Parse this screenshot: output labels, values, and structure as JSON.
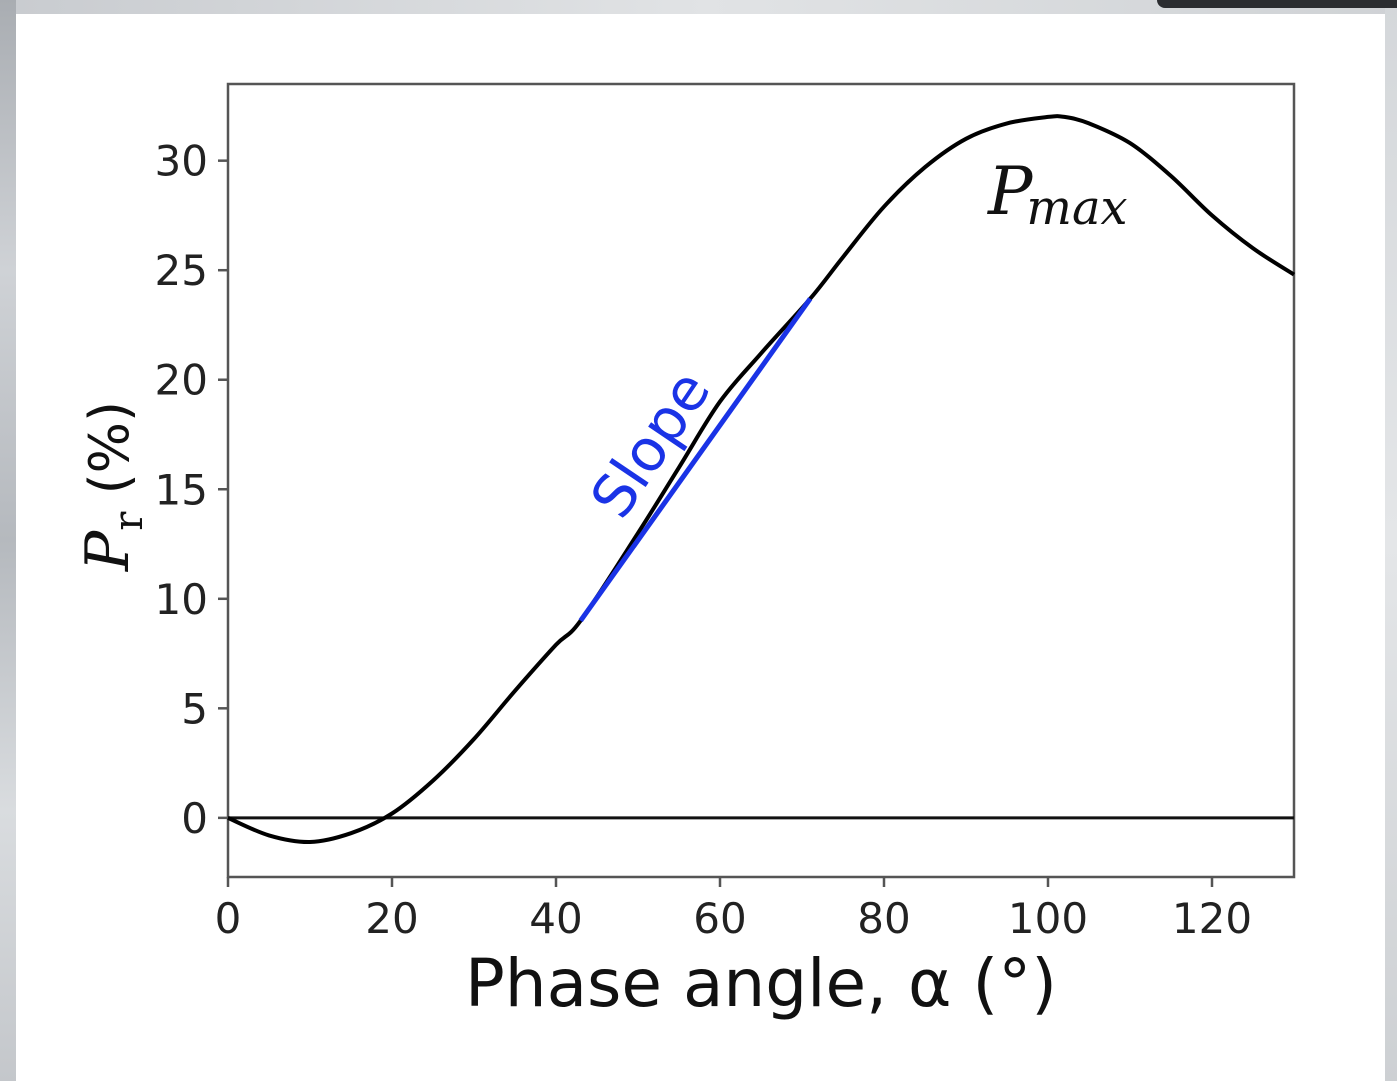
{
  "chart_data": {
    "type": "line",
    "xlabel": "Phase angle, α (°)",
    "ylabel": {
      "symbol": "P",
      "subscript": "r",
      "unit": " (%)"
    },
    "xlim": [
      0,
      130
    ],
    "ylim": [
      -2.7,
      33.5
    ],
    "x_ticks": [
      0,
      20,
      40,
      60,
      80,
      100,
      120
    ],
    "x_tick_labels": [
      "0",
      "20",
      "40",
      "60",
      "80",
      "100",
      "120"
    ],
    "y_ticks": [
      0,
      5,
      10,
      15,
      20,
      25,
      30
    ],
    "y_tick_labels": [
      "0",
      "5",
      "10",
      "15",
      "20",
      "25",
      "30"
    ],
    "grid": false,
    "zero_line": true,
    "series": [
      {
        "color": "#000000",
        "x": [
          0,
          5,
          10,
          15,
          20,
          25,
          30,
          35,
          40,
          43,
          50,
          55,
          60,
          65,
          71,
          75,
          80,
          85,
          90,
          95,
          100,
          102,
          105,
          110,
          115,
          120,
          125,
          130
        ],
        "y": [
          0,
          -0.8,
          -1.1,
          -0.7,
          0.2,
          1.7,
          3.6,
          5.8,
          7.9,
          9.0,
          13.0,
          16.0,
          19.0,
          21.2,
          23.7,
          25.6,
          27.9,
          29.7,
          31.0,
          31.7,
          32.0,
          32.0,
          31.7,
          30.8,
          29.3,
          27.5,
          26.0,
          24.8
        ]
      }
    ],
    "slope_segment": {
      "color": "#1a33e6",
      "x": [
        43,
        71
      ],
      "y": [
        9.0,
        23.7
      ]
    },
    "annotations": [
      {
        "id": "slope",
        "text": "Slope",
        "color": "#1a33e6"
      },
      {
        "id": "pmax",
        "text_main": "P",
        "text_sub": "max",
        "color": "#111111"
      }
    ]
  }
}
